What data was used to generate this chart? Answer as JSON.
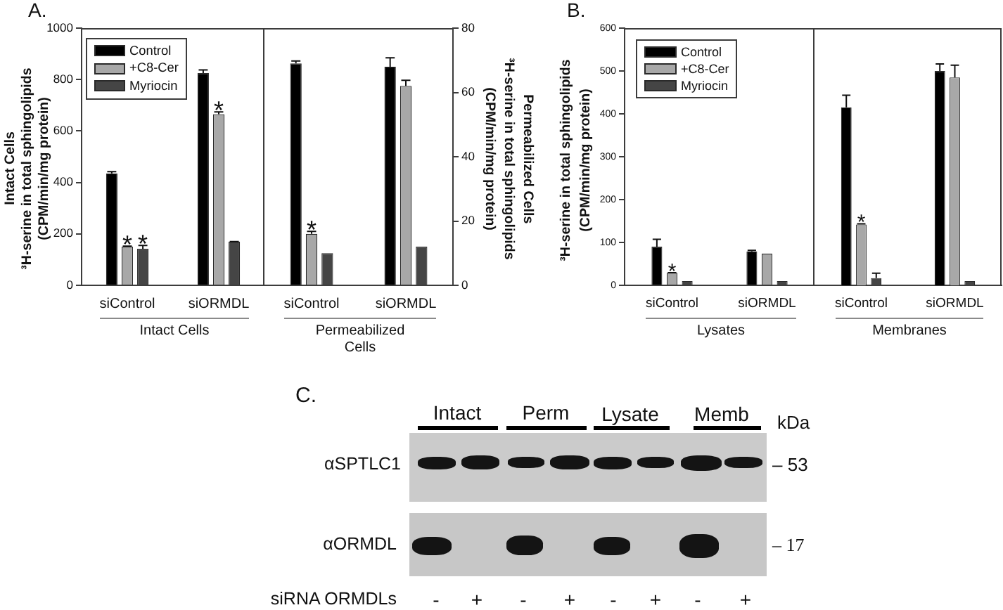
{
  "chart_data": [
    {
      "type": "bar",
      "title": "A.",
      "categories": [
        "siControl",
        "siORMDL"
      ],
      "xlabel": "Intact Cells",
      "ylabel": "Intact Cells\n³H-serine in total sphingolipids\n(CPM/min/mg protein)",
      "series": [
        {
          "name": "Control",
          "color": "#000000",
          "values": [
            435,
            825
          ],
          "errors": [
            10,
            15
          ]
        },
        {
          "name": "+C8-Cer",
          "color": "#a8a8a8",
          "values": [
            150,
            665
          ],
          "errors": [
            5,
            12
          ]
        },
        {
          "name": "Myriocin",
          "color": "#454545",
          "values": [
            142,
            170
          ],
          "errors": [
            16,
            3
          ]
        }
      ],
      "ylim": [
        0,
        1000
      ],
      "yticks": [
        0,
        200,
        400,
        600,
        800,
        1000
      ],
      "legend": "top left",
      "annotations": [
        {
          "text": "*",
          "x": "siControl",
          "y": 150
        },
        {
          "text": "*",
          "x": "siControl",
          "y": 142
        },
        {
          "text": "*",
          "x": "siORMDL",
          "y": 665
        }
      ]
    },
    {
      "type": "bar",
      "categories": [
        "siControl",
        "siORMDL"
      ],
      "xlabel": "Permeabilized Cells",
      "ylabel": "Permeabilized Cells\n³H-serine in total sphingolipids\n(CPM/min/mg protein)",
      "series": [
        {
          "color": "#000000",
          "values": [
            69,
            68
          ],
          "errors": [
            1,
            3
          ]
        },
        {
          "color": "#a8a8a8",
          "values": [
            16,
            62
          ],
          "errors": [
            1,
            2
          ]
        },
        {
          "color": "#454545",
          "values": [
            10,
            12
          ]
        }
      ],
      "ylim": [
        0,
        80
      ],
      "yticks": [
        0,
        20,
        40,
        60,
        80
      ],
      "annotations": [
        {
          "text": "*",
          "x": "siControl",
          "y": 16
        }
      ]
    },
    {
      "type": "bar",
      "title": "B.",
      "categories": [
        "siControl",
        "siORMDL"
      ],
      "xlabel": "Lysates",
      "ylabel": "³H-serine in total sphingolipids\n(CPM/min/mg protein)",
      "series": [
        {
          "name": "Control",
          "color": "#000000",
          "values": [
            90,
            79
          ],
          "errors": [
            19,
            4
          ]
        },
        {
          "name": "+C8-Cer",
          "color": "#a8a8a8",
          "values": [
            29,
            74
          ],
          "errors": [
            2,
            null
          ]
        },
        {
          "name": "Myriocin",
          "color": "#454545",
          "values": [
            10,
            10
          ]
        }
      ],
      "ylim": [
        0,
        600
      ],
      "yticks": [
        0,
        100,
        200,
        300,
        400,
        500,
        600
      ],
      "legend": "top left",
      "annotations": [
        {
          "text": "*",
          "x": "siControl",
          "y": 29
        }
      ]
    },
    {
      "type": "bar",
      "categories": [
        "siControl",
        "siORMDL"
      ],
      "xlabel": "Membranes",
      "series": [
        {
          "color": "#000000",
          "values": [
            415,
            500
          ],
          "errors": [
            30,
            18
          ]
        },
        {
          "color": "#a8a8a8",
          "values": [
            142,
            485
          ],
          "errors": [
            3,
            30
          ]
        },
        {
          "color": "#454545",
          "values": [
            17,
            10
          ],
          "errors": [
            13,
            null
          ]
        }
      ],
      "ylim": [
        0,
        600
      ],
      "tick_labels": "x",
      "annotations": [
        {
          "text": "*",
          "x": "siControl",
          "y": 142
        }
      ]
    },
    {
      "type": "other",
      "title": "C.",
      "annotations": [
        "Intact",
        "Perm",
        "Lysate",
        "Memb",
        "kDa",
        "αSPTLC1",
        "αORMDL",
        "– 53",
        "– 17",
        "siRNA ORMDLs",
        "-",
        "+",
        "-",
        "+",
        "-",
        "+",
        "-",
        "+"
      ]
    }
  ]
}
